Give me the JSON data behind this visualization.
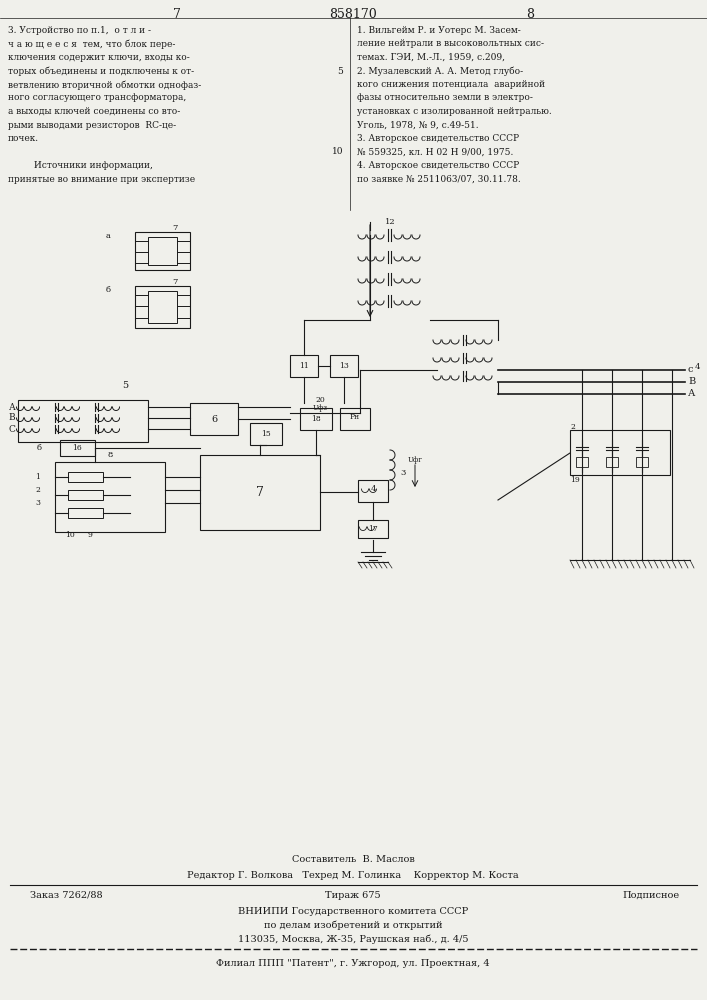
{
  "bg_color": "#f0f0eb",
  "text_color": "#1a1a1a",
  "page_left": "7",
  "page_center": "858170",
  "page_right": "8",
  "left_column": [
    "3. Устройство по п.1,  о т л и -",
    "ч а ю щ е е с я  тем, что блок пере-",
    "ключения содержит ключи, входы ко-",
    "торых объединены и подключены к от-",
    "ветвлению вторичной обмотки однофаз-",
    "ного согласующего трансформатора,",
    "а выходы ключей соединены со вто-",
    "рыми выводами резисторов  RC-це-",
    "почек.",
    "",
    "         Источники информации,",
    "принятые во внимание при экспертизе"
  ],
  "right_column": [
    "1. Вильгейм Р. и Уотерс М. Засем-",
    "ление нейтрали в высоковольтных сис-",
    "темах. ГЭИ, М.-Л., 1959, с.209,",
    "2. Музалевский А. А. Метод глубо-",
    "кого снижения потенциала  аварийной",
    "фазы относительно земли в электро-",
    "установках с изолированной нейтралью.",
    "Уголь, 1978, № 9, с.49-51.",
    "3. Авторское свидетельство СССР",
    "№ 559325, кл. Н 02 Н 9/00, 1975.",
    "4. Авторское свидетельство СССР",
    "по заявке № 2511063/07, 30.11.78."
  ],
  "footer": [
    "Составитель  В. Маслов",
    "Редактор Г. Волкова   Техред М. Голинка    Корректор М. Коста",
    "Заказ 7262/88        Тираж 675          Подписное",
    "ВНИИПИ Государственного комитета СССР",
    "по делам изобретений и открытий",
    "113035, Москва, Ж-35, Раушская наб., д. 4/5",
    "Филиал ППП \"Патент\", г. Ужгород, ул. Проектная, 4"
  ]
}
